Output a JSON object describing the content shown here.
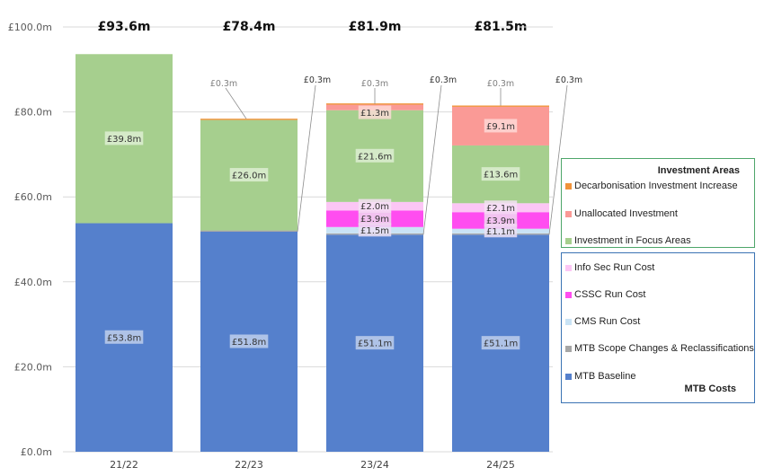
{
  "chart_data": {
    "type": "bar",
    "stacked": true,
    "title": "",
    "xlabel": "",
    "ylabel": "",
    "ylim": [
      0,
      100
    ],
    "yticks": [
      0,
      20,
      40,
      60,
      80,
      100
    ],
    "ytick_labels": [
      "£0.0m",
      "£20.0m",
      "£40.0m",
      "£60.0m",
      "£80.0m",
      "£100.0m"
    ],
    "grid": true,
    "categories": [
      "21/22",
      "22/23",
      "23/24",
      "24/25"
    ],
    "totals": [
      93.6,
      78.4,
      81.9,
      81.5
    ],
    "total_labels": [
      "£93.6m",
      "£78.4m",
      "£81.9m",
      "£81.5m"
    ],
    "series": [
      {
        "name": "MTB Baseline",
        "key": "mtb-baseline",
        "color": "#5580cc",
        "values": [
          53.8,
          51.8,
          51.1,
          51.1
        ],
        "labels": [
          "£53.8m",
          "£51.8m",
          "£51.1m",
          "£51.1m"
        ]
      },
      {
        "name": "MTB Scope Changes & Reclassifications",
        "key": "mtb-scope-changes",
        "color": "#a6a6a6",
        "values": [
          0,
          0.3,
          0.3,
          0.3
        ],
        "labels": [
          "",
          "£0.3m",
          "£0.3m",
          "£0.3m"
        ]
      },
      {
        "name": "CMS Run Cost",
        "key": "cms-run-cost",
        "color": "#c9e3f5",
        "values": [
          0,
          0,
          1.5,
          1.1
        ],
        "labels": [
          "",
          "",
          "£1.5m",
          "£1.1m"
        ]
      },
      {
        "name": "CSSC Run Cost",
        "key": "cssc-run-cost",
        "color": "#ff4df0",
        "values": [
          0,
          0,
          3.9,
          3.9
        ],
        "labels": [
          "",
          "",
          "£3.9m",
          "£3.9m"
        ]
      },
      {
        "name": "Info Sec Run Cost",
        "key": "info-sec-run-cost",
        "color": "#fcc6f5",
        "values": [
          0,
          0,
          2.0,
          2.1
        ],
        "labels": [
          "",
          "",
          "£2.0m",
          "£2.1m"
        ]
      },
      {
        "name": "Investment in Focus Areas",
        "key": "investment-focus-areas",
        "color": "#a6cf8e",
        "values": [
          39.8,
          26.0,
          21.6,
          13.6
        ],
        "labels": [
          "£39.8m",
          "£26.0m",
          "£21.6m",
          "£13.6m"
        ]
      },
      {
        "name": "Unallocated Investment",
        "key": "unallocated-investment",
        "color": "#fa9a96",
        "values": [
          0,
          0,
          1.3,
          9.1
        ],
        "labels": [
          "",
          "",
          "£1.3m",
          "£9.1m"
        ]
      },
      {
        "name": "Decarbonisation Investment Increase",
        "key": "decarbonisation-investment",
        "color": "#f0933a",
        "values": [
          0,
          0.3,
          0.3,
          0.3
        ],
        "labels": [
          "",
          "£0.3m",
          "£0.3m",
          "£0.3m"
        ]
      }
    ],
    "legend": {
      "placement": "right",
      "groups": [
        {
          "title": "Investment Areas",
          "items": [
            "Decarbonisation Investment Increase",
            "Unallocated Investment",
            "Investment in Focus Areas"
          ]
        },
        {
          "title": "MTB Costs",
          "items": [
            "Info Sec Run Cost",
            "CSSC Run Cost",
            "CMS Run Cost",
            "MTB Scope Changes & Reclassifications",
            "MTB Baseline"
          ]
        }
      ]
    }
  },
  "legend": {
    "investment_title": "Investment Areas",
    "mtb_title": "MTB Costs",
    "investment_items": [
      {
        "label": "Decarbonisation Investment Increase",
        "color": "#f0933a"
      },
      {
        "label": "Unallocated Investment",
        "color": "#fa9a96"
      },
      {
        "label": "Investment in Focus Areas",
        "color": "#a6cf8e"
      }
    ],
    "mtb_items": [
      {
        "label": "Info Sec Run Cost",
        "color": "#fcc6f5"
      },
      {
        "label": "CSSC Run Cost",
        "color": "#ff4df0"
      },
      {
        "label": "CMS Run Cost",
        "color": "#c9e3f5"
      },
      {
        "label": "MTB Scope Changes & Reclassifications",
        "color": "#a6a6a6"
      },
      {
        "label": "MTB Baseline",
        "color": "#5580cc"
      }
    ]
  }
}
